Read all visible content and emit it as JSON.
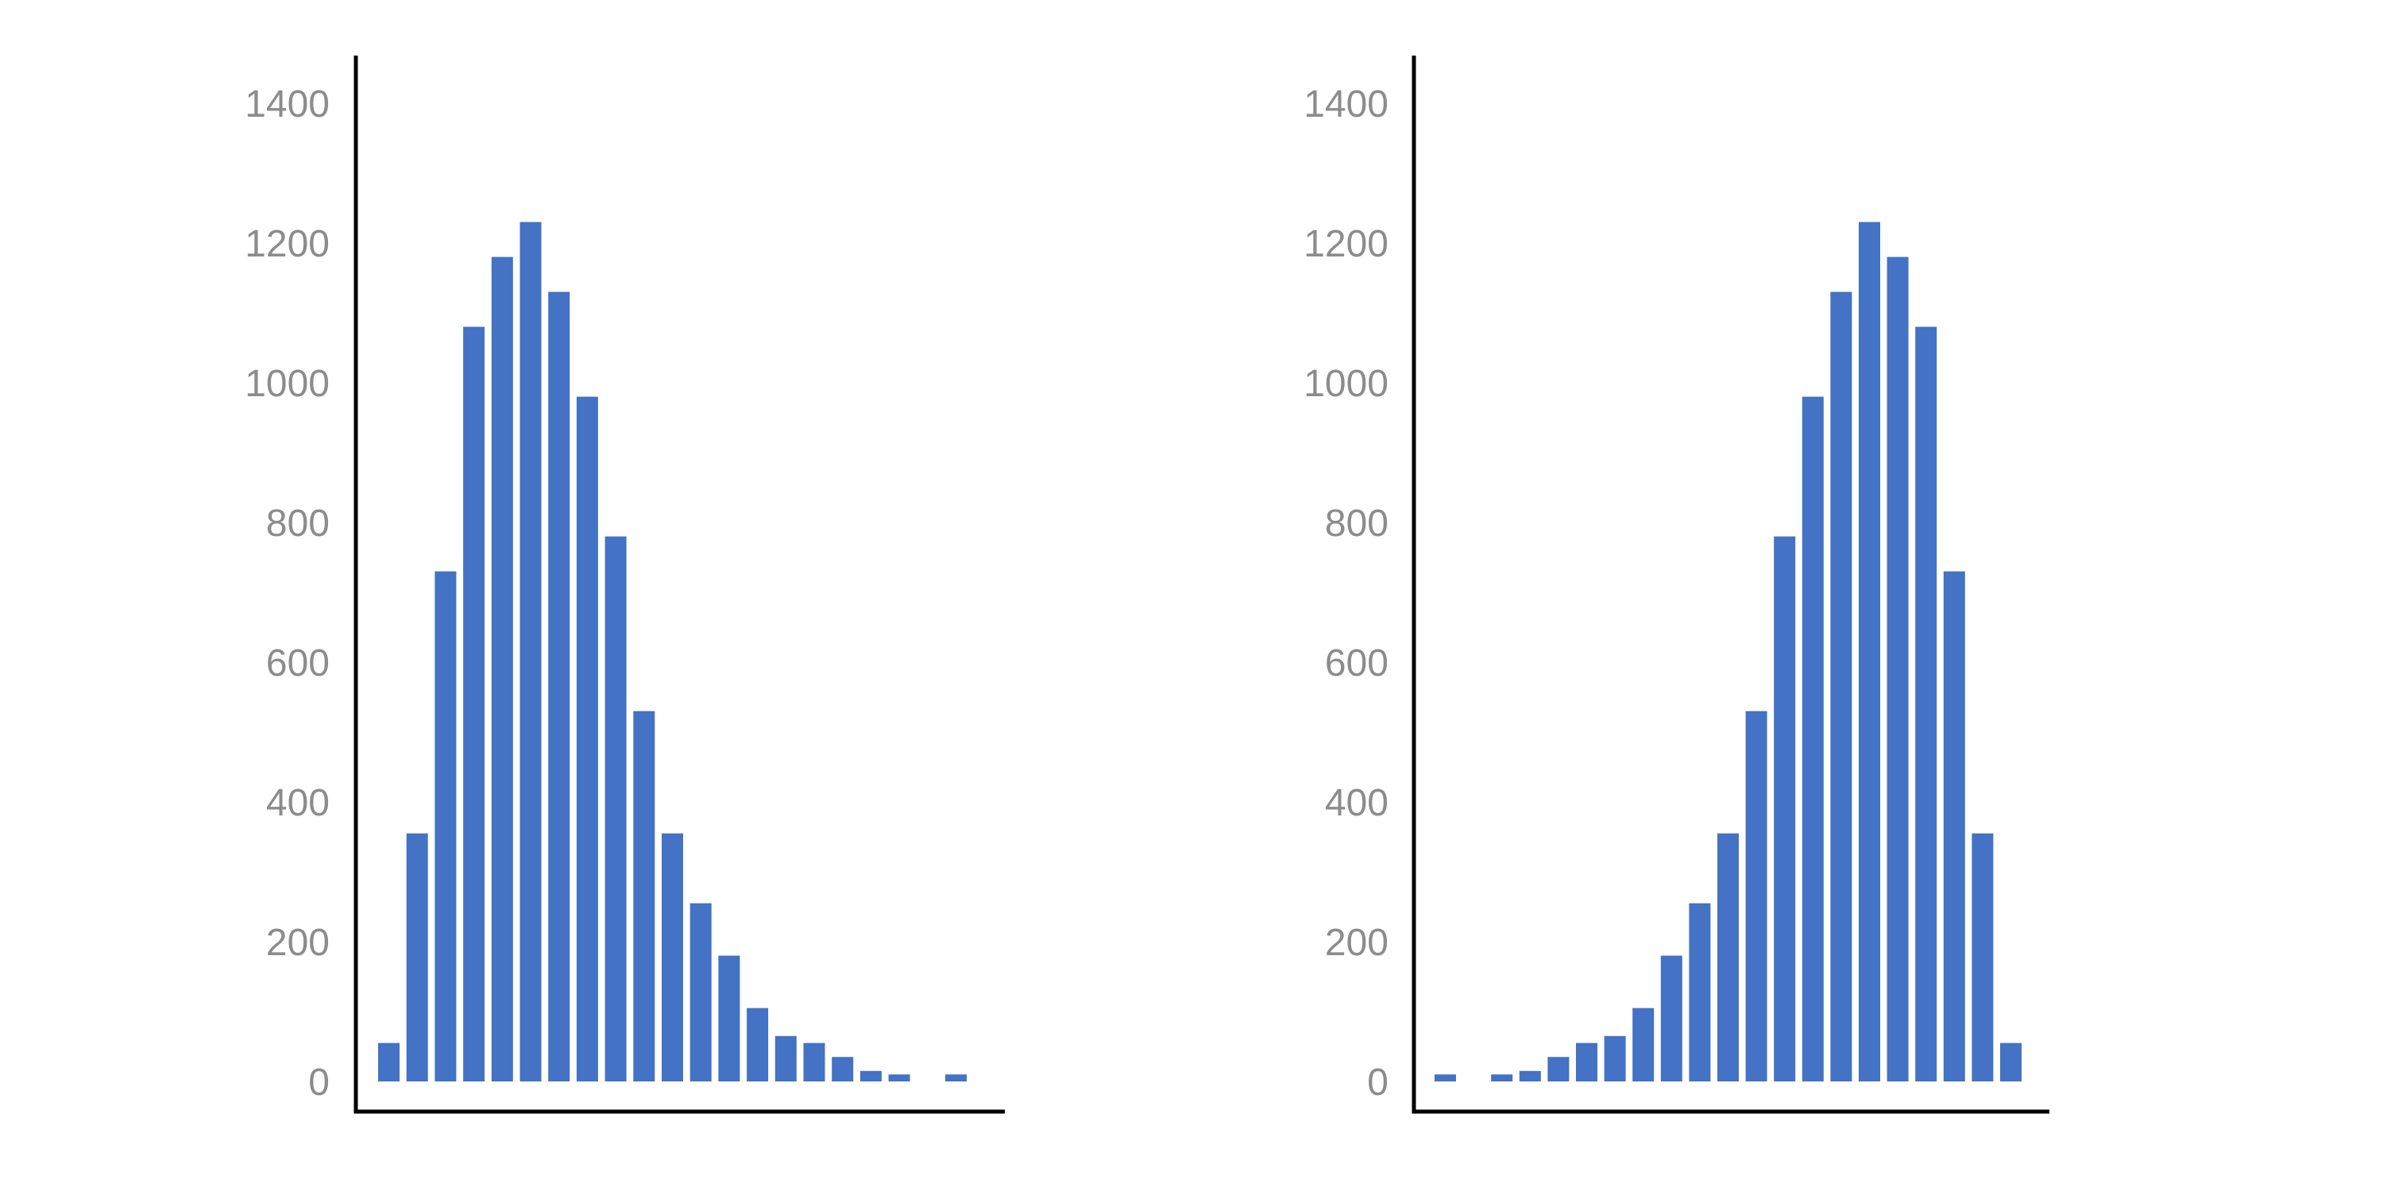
{
  "chart_data": [
    {
      "type": "bar",
      "title": "",
      "xlabel": "",
      "ylabel": "",
      "ylim": [
        0,
        1450
      ],
      "grid": false,
      "legend": "none",
      "yticks": [
        0,
        200,
        400,
        600,
        800,
        1000,
        1200,
        1400
      ],
      "bar_color": "#4472C4",
      "values": [
        55,
        355,
        730,
        1080,
        1180,
        1230,
        1130,
        980,
        780,
        530,
        355,
        255,
        180,
        105,
        65,
        55,
        35,
        15,
        10,
        0,
        10
      ]
    },
    {
      "type": "bar",
      "title": "",
      "xlabel": "",
      "ylabel": "",
      "ylim": [
        0,
        1450
      ],
      "grid": false,
      "legend": "none",
      "yticks": [
        0,
        200,
        400,
        600,
        800,
        1000,
        1200,
        1400
      ],
      "bar_color": "#4472C4",
      "values": [
        10,
        0,
        10,
        15,
        35,
        55,
        65,
        105,
        180,
        255,
        355,
        530,
        780,
        980,
        1130,
        1230,
        1180,
        1080,
        730,
        355,
        55
      ]
    }
  ]
}
